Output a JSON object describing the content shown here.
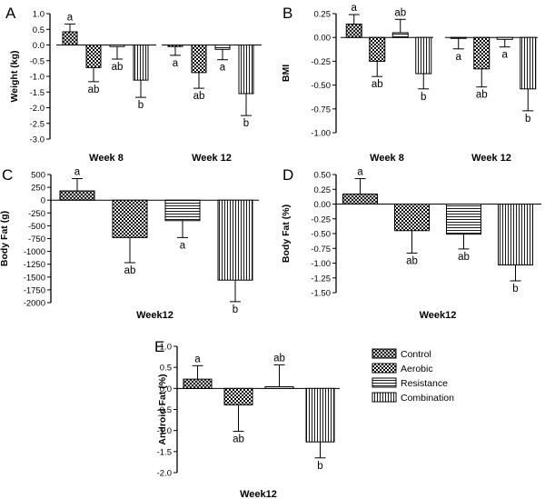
{
  "legend": {
    "entries": [
      {
        "label": "Control",
        "pattern": "crosshatch"
      },
      {
        "label": "Aerobic",
        "pattern": "checker"
      },
      {
        "label": "Resistance",
        "pattern": "horizontal"
      },
      {
        "label": "Combination",
        "pattern": "vertical"
      }
    ]
  },
  "chart_data": [
    {
      "id": "A",
      "type": "bar",
      "panel_label": "A",
      "ylabel": "Weight (kg)",
      "ylim": [
        -3.0,
        1.0
      ],
      "yticks": [
        "1.0",
        "0.5",
        "0.0",
        "-0.5",
        "-1.0",
        "-1.5",
        "-2.0",
        "-2.5",
        "-3.0"
      ],
      "ytick_values": [
        1.0,
        0.5,
        0.0,
        -0.5,
        -1.0,
        -1.5,
        -2.0,
        -2.5,
        -3.0
      ],
      "categories": [
        "Week 8",
        "Week 12"
      ],
      "series": [
        {
          "name": "Control",
          "values": [
            0.42,
            -0.05
          ],
          "errors": [
            0.25,
            0.28
          ],
          "letters": [
            "a",
            "a"
          ]
        },
        {
          "name": "Aerobic",
          "values": [
            -0.72,
            -0.88
          ],
          "errors": [
            0.45,
            0.5
          ],
          "letters": [
            "ab",
            "ab"
          ]
        },
        {
          "name": "Resistance",
          "values": [
            -0.05,
            -0.14
          ],
          "errors": [
            0.4,
            0.33
          ],
          "letters": [
            "ab",
            "a"
          ]
        },
        {
          "name": "Combination",
          "values": [
            -1.12,
            -1.55
          ],
          "errors": [
            0.55,
            0.7
          ],
          "letters": [
            "b",
            "b"
          ]
        }
      ]
    },
    {
      "id": "B",
      "type": "bar",
      "panel_label": "B",
      "ylabel": "BMI",
      "ylim": [
        -1.0,
        0.25
      ],
      "yticks": [
        "0.25",
        "0.00",
        "-0.25",
        "-0.50",
        "-0.75",
        "-1.00"
      ],
      "ytick_values": [
        0.25,
        0.0,
        -0.25,
        -0.5,
        -0.75,
        -1.0
      ],
      "categories": [
        "Week 8",
        "Week 12"
      ],
      "series": [
        {
          "name": "Control",
          "values": [
            0.14,
            -0.01
          ],
          "errors": [
            0.1,
            0.11
          ],
          "letters": [
            "a",
            "a"
          ]
        },
        {
          "name": "Aerobic",
          "values": [
            -0.25,
            -0.33
          ],
          "errors": [
            0.16,
            0.19
          ],
          "letters": [
            "ab",
            "ab"
          ]
        },
        {
          "name": "Resistance",
          "values": [
            0.05,
            -0.02
          ],
          "errors": [
            0.14,
            0.08
          ],
          "letters": [
            "ab",
            "a"
          ]
        },
        {
          "name": "Combination",
          "values": [
            -0.38,
            -0.54
          ],
          "errors": [
            0.16,
            0.23
          ],
          "letters": [
            "b",
            "b"
          ]
        }
      ]
    },
    {
      "id": "C",
      "type": "bar",
      "panel_label": "C",
      "ylabel": "Body Fat (g)",
      "ylim": [
        -2000,
        500
      ],
      "yticks": [
        "500",
        "250",
        "0",
        "-250",
        "-500",
        "-750",
        "-1000",
        "-1250",
        "-1500",
        "-1750",
        "-2000"
      ],
      "ytick_values": [
        500,
        250,
        0,
        -250,
        -500,
        -750,
        -1000,
        -1250,
        -1500,
        -1750,
        -2000
      ],
      "categories": [
        "Week12"
      ],
      "series": [
        {
          "name": "Control",
          "values": [
            180
          ],
          "errors": [
            240
          ],
          "letters": [
            "a"
          ]
        },
        {
          "name": "Aerobic",
          "values": [
            -730
          ],
          "errors": [
            490
          ],
          "letters": [
            "ab"
          ]
        },
        {
          "name": "Resistance",
          "values": [
            -400
          ],
          "errors": [
            330
          ],
          "letters": [
            "a"
          ]
        },
        {
          "name": "Combination",
          "values": [
            -1560
          ],
          "errors": [
            420
          ],
          "letters": [
            "b"
          ]
        }
      ]
    },
    {
      "id": "D",
      "type": "bar",
      "panel_label": "D",
      "ylabel": "Body Fat (%)",
      "ylim": [
        -1.5,
        0.5
      ],
      "yticks": [
        "0.50",
        "0.25",
        "0.00",
        "-0.25",
        "-0.50",
        "-0.75",
        "-1.00",
        "-1.25",
        "-1.50"
      ],
      "ytick_values": [
        0.5,
        0.25,
        0.0,
        -0.25,
        -0.5,
        -0.75,
        -1.0,
        -1.25,
        -1.5
      ],
      "categories": [
        "Week12"
      ],
      "series": [
        {
          "name": "Control",
          "values": [
            0.17
          ],
          "errors": [
            0.26
          ],
          "letters": [
            "a"
          ]
        },
        {
          "name": "Aerobic",
          "values": [
            -0.45
          ],
          "errors": [
            0.38
          ],
          "letters": [
            "ab"
          ]
        },
        {
          "name": "Resistance",
          "values": [
            -0.51
          ],
          "errors": [
            0.25
          ],
          "letters": [
            "ab"
          ]
        },
        {
          "name": "Combination",
          "values": [
            -1.03
          ],
          "errors": [
            0.27
          ],
          "letters": [
            "b"
          ]
        }
      ]
    },
    {
      "id": "E",
      "type": "bar",
      "panel_label": "E",
      "ylabel": "Android Fat (%)",
      "ylim": [
        -2.0,
        1.0
      ],
      "yticks": [
        "1.0",
        "0.5",
        "0.0",
        "-0.5",
        "-1.0",
        "-1.5",
        "-2.0"
      ],
      "ytick_values": [
        1.0,
        0.5,
        0.0,
        -0.5,
        -1.0,
        -1.5,
        -2.0
      ],
      "categories": [
        "Week12"
      ],
      "series": [
        {
          "name": "Control",
          "values": [
            0.22
          ],
          "errors": [
            0.32
          ],
          "letters": [
            "a"
          ]
        },
        {
          "name": "Aerobic",
          "values": [
            -0.39
          ],
          "errors": [
            0.63
          ],
          "letters": [
            "ab"
          ]
        },
        {
          "name": "Resistance",
          "values": [
            0.04
          ],
          "errors": [
            0.52
          ],
          "letters": [
            "ab"
          ]
        },
        {
          "name": "Combination",
          "values": [
            -1.27
          ],
          "errors": [
            0.38
          ],
          "letters": [
            "b"
          ]
        }
      ]
    }
  ]
}
